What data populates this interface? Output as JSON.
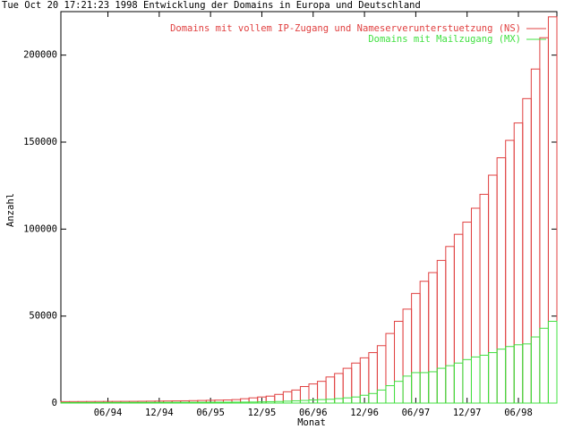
{
  "chart_data": {
    "type": "steps",
    "title": "Tue Oct 20 17:21:23 1998 Entwicklung der Domains in Europa und Deutschland",
    "x_label": "Monat",
    "y_label": "Anzahl",
    "categories": [
      null,
      null,
      null,
      null,
      null,
      "06/94",
      null,
      null,
      null,
      null,
      null,
      "12/94",
      null,
      null,
      null,
      null,
      null,
      "06/95",
      null,
      null,
      null,
      null,
      null,
      "12/95",
      null,
      null,
      null,
      null,
      null,
      "06/96",
      null,
      null,
      null,
      null,
      null,
      "12/96",
      null,
      null,
      null,
      null,
      null,
      "06/97",
      null,
      null,
      null,
      null,
      null,
      "12/97",
      null,
      null,
      null,
      null,
      null,
      "06/98",
      null,
      null,
      null,
      null
    ],
    "series": [
      {
        "name": "Domains mit vollem IP-Zugang und Nameserverunterstuetzung (NS)",
        "color": "#e04040",
        "values": [
          840,
          860,
          880,
          900,
          920,
          940,
          960,
          980,
          1000,
          1050,
          1100,
          1150,
          1200,
          1250,
          1300,
          1400,
          1500,
          1600,
          1700,
          1800,
          2000,
          2500,
          3000,
          3500,
          4000,
          5000,
          6500,
          7500,
          9500,
          11000,
          12500,
          15000,
          17000,
          20000,
          23000,
          26000,
          29000,
          33000,
          40000,
          47000,
          54000,
          63000,
          70000,
          75000,
          82000,
          90000,
          97000,
          104000,
          112000,
          120000,
          131000,
          141000,
          151000,
          161000,
          175000,
          192000,
          210000,
          222000
        ]
      },
      {
        "name": "Domains mit Mailzugang (MX)",
        "color": "#40e040",
        "values": [
          300,
          310,
          320,
          330,
          340,
          350,
          360,
          370,
          380,
          390,
          400,
          410,
          420,
          430,
          440,
          450,
          460,
          480,
          500,
          520,
          540,
          560,
          600,
          700,
          800,
          900,
          1100,
          1300,
          1500,
          1800,
          2000,
          2200,
          2600,
          3000,
          3500,
          4500,
          5500,
          7500,
          10000,
          12500,
          15500,
          17500,
          17500,
          18000,
          20000,
          21500,
          23000,
          25000,
          26500,
          27500,
          29000,
          31000,
          32500,
          33500,
          34000,
          38000,
          43000,
          47000
        ]
      }
    ],
    "ylim": [
      0,
      225000
    ],
    "yticks": [
      0,
      50000,
      100000,
      150000,
      200000
    ],
    "legend": "top-right"
  }
}
